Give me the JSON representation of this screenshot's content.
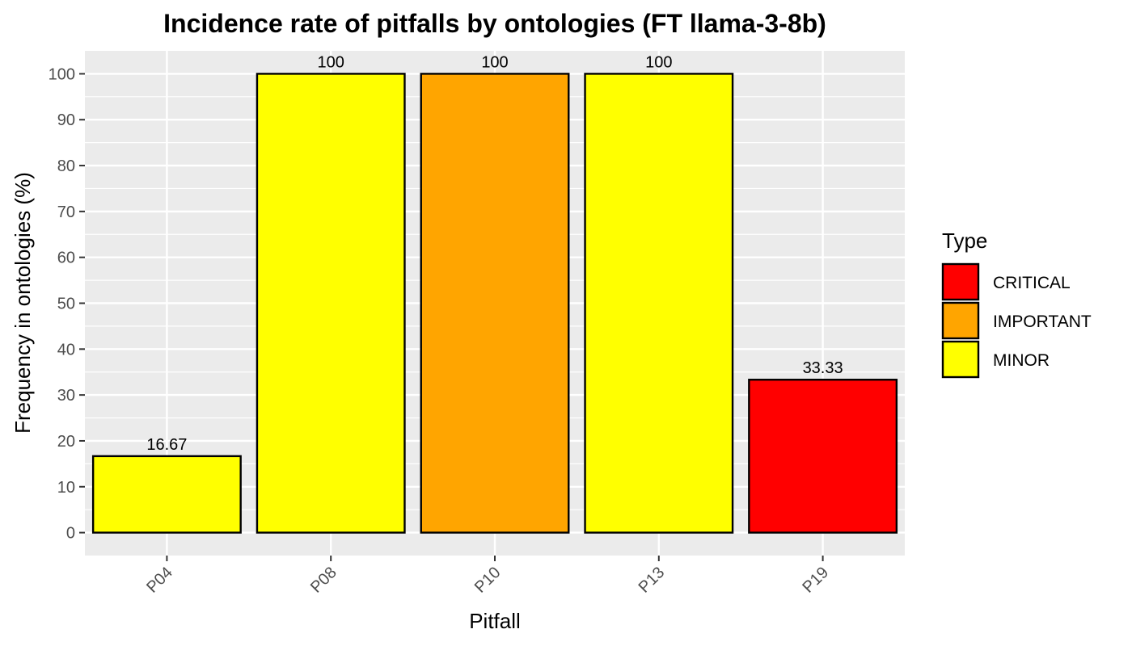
{
  "chart_data": {
    "type": "bar",
    "title": "Incidence rate of pitfalls by ontologies (FT llama-3-8b)",
    "xlabel": "Pitfall",
    "ylabel": "Frequency in ontologies (%)",
    "categories": [
      "P04",
      "P08",
      "P10",
      "P13",
      "P19"
    ],
    "values": [
      16.67,
      100,
      100,
      100,
      33.33
    ],
    "value_labels": [
      "16.67",
      "100",
      "100",
      "100",
      "33.33"
    ],
    "bar_types": [
      "MINOR",
      "MINOR",
      "IMPORTANT",
      "MINOR",
      "CRITICAL"
    ],
    "ylim": [
      -5,
      105
    ],
    "y_ticks": [
      0,
      10,
      20,
      30,
      40,
      50,
      60,
      70,
      80,
      90,
      100
    ],
    "grid": true,
    "legend": {
      "title": "Type",
      "placement": "right",
      "entries": [
        {
          "label": "CRITICAL",
          "color": "#ff0000"
        },
        {
          "label": "IMPORTANT",
          "color": "#ffa500"
        },
        {
          "label": "MINOR",
          "color": "#ffff00"
        }
      ]
    },
    "colors": {
      "CRITICAL": "#ff0000",
      "IMPORTANT": "#ffa500",
      "MINOR": "#ffff00",
      "panel_background": "#ebebeb",
      "gridline": "#ffffff",
      "bar_border": "#000000"
    }
  }
}
